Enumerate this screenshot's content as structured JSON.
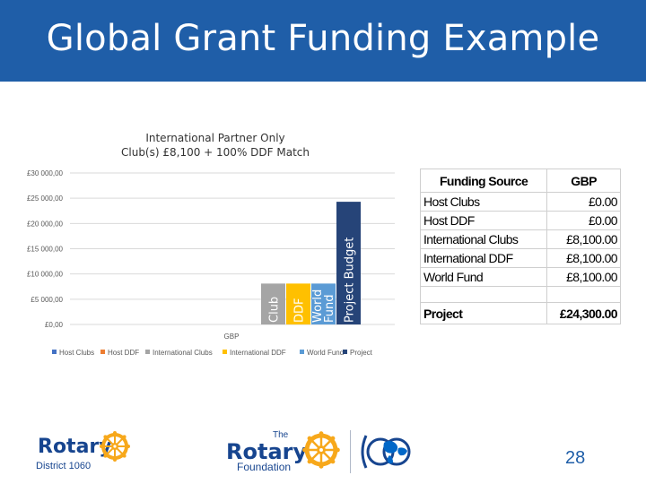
{
  "slide": {
    "title": "Global Grant Funding Example",
    "page_number": "28"
  },
  "colors": {
    "header": "#1f5ea8",
    "host_clubs": "#4472c4",
    "host_ddf": "#ed7d31",
    "international_clubs": "#a5a5a5",
    "international_ddf": "#ffc000",
    "world_fund": "#5b9bd5",
    "project": "#264478"
  },
  "chart_data": {
    "type": "bar",
    "title_lines": [
      "International Partner Only",
      "Club(s) £8,100 + 100% DDF Match"
    ],
    "categories": [
      "GBP"
    ],
    "xlabel": "",
    "ylabel": "",
    "ylim": [
      0,
      30000
    ],
    "ytick_labels": [
      "£0,00",
      "£5 000,00",
      "£10 000,00",
      "£15 000,00",
      "£20 000,00",
      "£25 000,00",
      "£30 000,00"
    ],
    "ytick_values": [
      0,
      5000,
      10000,
      15000,
      20000,
      25000,
      30000
    ],
    "grid": true,
    "legend_position": "bottom",
    "series": [
      {
        "name": "Host Clubs",
        "values": [
          0
        ],
        "bar_label": "",
        "color_key": "host_clubs"
      },
      {
        "name": "Host DDF",
        "values": [
          0
        ],
        "bar_label": "",
        "color_key": "host_ddf"
      },
      {
        "name": "International Clubs",
        "values": [
          8100
        ],
        "bar_label": "Club",
        "color_key": "international_clubs"
      },
      {
        "name": "International DDF",
        "values": [
          8100
        ],
        "bar_label": "DDF",
        "color_key": "international_ddf"
      },
      {
        "name": "World Fund",
        "values": [
          8100
        ],
        "bar_label": "World Fund",
        "color_key": "world_fund"
      },
      {
        "name": "Project",
        "values": [
          24300
        ],
        "bar_label": "Project Budget",
        "color_key": "project"
      }
    ]
  },
  "funding_table": {
    "headers": [
      "Funding Source",
      "GBP"
    ],
    "rows": [
      {
        "source": "Host Clubs",
        "gbp": "£0.00"
      },
      {
        "source": "Host DDF",
        "gbp": "£0.00"
      },
      {
        "source": "International Clubs",
        "gbp": "£8,100.00"
      },
      {
        "source": "International DDF",
        "gbp": "£8,100.00"
      },
      {
        "source": "World Fund",
        "gbp": "£8,100.00"
      },
      {
        "source": "",
        "gbp": ""
      }
    ],
    "total": {
      "source": "Project",
      "gbp": "£24,300.00"
    }
  },
  "logos": {
    "district": {
      "brand": "Rotary",
      "subtitle": "District 1060"
    },
    "foundation": {
      "prefix": "The",
      "brand": "Rotary",
      "subtitle": "Foundation"
    }
  }
}
